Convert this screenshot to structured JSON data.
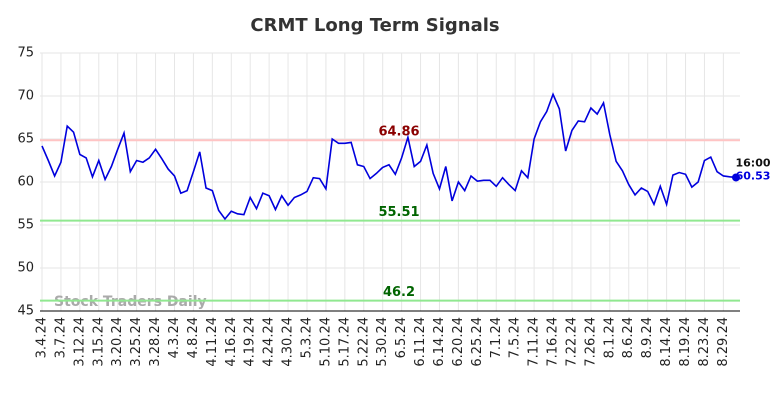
{
  "chart_data": {
    "type": "line",
    "title": "CRMT Long Term Signals",
    "categories": [
      "3.4.24",
      null,
      null,
      "3.7.24",
      null,
      null,
      "3.12.24",
      null,
      null,
      "3.15.24",
      null,
      null,
      "3.20.24",
      null,
      null,
      "3.25.24",
      null,
      null,
      "3.28.24",
      null,
      null,
      "4.3.24",
      null,
      null,
      "4.8.24",
      null,
      null,
      "4.11.24",
      null,
      null,
      "4.16.24",
      null,
      null,
      "4.19.24",
      null,
      null,
      "4.24.24",
      null,
      null,
      "4.30.24",
      null,
      null,
      "5.3.24",
      null,
      null,
      "5.10.24",
      null,
      null,
      "5.17.24",
      null,
      null,
      "5.22.24",
      null,
      null,
      "5.30.24",
      null,
      null,
      "6.5.24",
      null,
      null,
      "6.11.24",
      null,
      null,
      "6.14.24",
      null,
      null,
      "6.20.24",
      null,
      null,
      "6.25.24",
      null,
      null,
      "7.1.24",
      null,
      null,
      "7.5.24",
      null,
      null,
      "7.11.24",
      null,
      null,
      "7.16.24",
      null,
      null,
      "7.22.24",
      null,
      null,
      "7.26.24",
      null,
      null,
      "8.1.24",
      null,
      null,
      "8.6.24",
      null,
      null,
      "8.9.24",
      null,
      null,
      "8.14.24",
      null,
      null,
      "8.19.24",
      null,
      null,
      "8.23.24",
      null,
      null,
      "8.29.24",
      null,
      null
    ],
    "series": [
      {
        "color": "#0000dd",
        "values": [
          64.2,
          62.5,
          60.7,
          62.3,
          66.5,
          65.8,
          63.2,
          62.8,
          60.6,
          62.5,
          60.3,
          61.8,
          63.8,
          65.7,
          61.2,
          62.5,
          62.3,
          62.8,
          63.8,
          62.7,
          61.5,
          60.7,
          58.7,
          59.0,
          61.2,
          63.5,
          59.3,
          59.0,
          56.7,
          55.7,
          56.6,
          56.3,
          56.2,
          58.2,
          56.9,
          58.7,
          58.4,
          56.8,
          58.4,
          57.3,
          58.2,
          58.5,
          58.9,
          60.5,
          60.4,
          59.2,
          65.0,
          64.5,
          64.5,
          64.6,
          62.0,
          61.8,
          60.4,
          61.0,
          61.7,
          62.0,
          60.9,
          62.8,
          65.2,
          61.8,
          62.4,
          64.3,
          61.0,
          59.2,
          61.8,
          57.8,
          60.0,
          59.0,
          60.7,
          60.1,
          60.2,
          60.2,
          59.5,
          60.5,
          59.7,
          59.0,
          61.3,
          60.5,
          65.0,
          67.0,
          68.2,
          70.2,
          68.5,
          63.6,
          66.0,
          67.1,
          67.0,
          68.6,
          67.9,
          69.2,
          65.5,
          62.4,
          61.3,
          59.7,
          58.5,
          59.3,
          58.9,
          57.4,
          59.5,
          57.4,
          60.8,
          61.1,
          60.9,
          59.4,
          60.0,
          62.5,
          62.9,
          61.2,
          60.7,
          60.6,
          60.53
        ]
      }
    ],
    "ylim": [
      45,
      75
    ],
    "yticks": [
      45,
      50,
      55,
      60,
      65,
      70,
      75
    ],
    "grid": true,
    "hlines": [
      {
        "value": 64.86,
        "color": "#ffc4c4",
        "label_color": "#8b0000"
      },
      {
        "value": 55.51,
        "color": "#90e890",
        "label_color": "#006400"
      },
      {
        "value": 46.2,
        "color": "#90e890",
        "label_color": "#006400"
      }
    ],
    "last_time": "16:00",
    "watermark": "Stock Traders Daily"
  }
}
